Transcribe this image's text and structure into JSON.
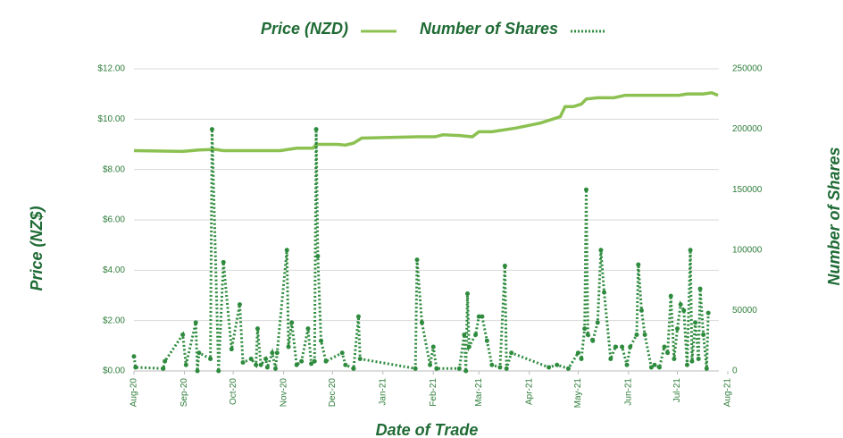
{
  "chart_data": {
    "type": "line",
    "xlabel": "Date of Trade",
    "ylabel": "Price (NZ$)",
    "y2label": "Number of Shares",
    "xlim": [
      0,
      365
    ],
    "xticks": [
      {
        "value": 0,
        "label": "Aug-20"
      },
      {
        "value": 31,
        "label": "Sep-20"
      },
      {
        "value": 61,
        "label": "Oct-20"
      },
      {
        "value": 92,
        "label": "Nov-20"
      },
      {
        "value": 122,
        "label": "Dec-20"
      },
      {
        "value": 153,
        "label": "Jan-21"
      },
      {
        "value": 184,
        "label": "Feb-21"
      },
      {
        "value": 212,
        "label": "Mar-21"
      },
      {
        "value": 243,
        "label": "Apr-21"
      },
      {
        "value": 273,
        "label": "May-21"
      },
      {
        "value": 304,
        "label": "Jun-21"
      },
      {
        "value": 334,
        "label": "Jul-21"
      },
      {
        "value": 365,
        "label": "Aug-21"
      }
    ],
    "ylim": [
      0,
      12
    ],
    "yticks": [
      {
        "value": 0,
        "label": "$0.00"
      },
      {
        "value": 2,
        "label": "$2.00"
      },
      {
        "value": 4,
        "label": "$4.00"
      },
      {
        "value": 6,
        "label": "$6.00"
      },
      {
        "value": 8,
        "label": "$8.00"
      },
      {
        "value": 10,
        "label": "$10.00"
      },
      {
        "value": 12,
        "label": "$12.00"
      }
    ],
    "y2lim": [
      0,
      250000
    ],
    "y2ticks": [
      0,
      50000,
      100000,
      150000,
      200000,
      250000
    ],
    "grid": true,
    "series": [
      {
        "name": "Price (NZD)",
        "color": "#8cc152",
        "line_style": "solid",
        "x": [
          0,
          30,
          40,
          50,
          55,
          80,
          90,
          95,
          100,
          110,
          112,
          125,
          130,
          135,
          140,
          160,
          175,
          185,
          190,
          200,
          208,
          212,
          220,
          235,
          250,
          262,
          265,
          270,
          275,
          278,
          285,
          295,
          302,
          320,
          335,
          340,
          350,
          355,
          359
        ],
        "values": [
          8.75,
          8.72,
          8.78,
          8.8,
          8.75,
          8.75,
          8.75,
          8.8,
          8.85,
          8.85,
          9.0,
          9.0,
          8.97,
          9.05,
          9.25,
          9.28,
          9.3,
          9.3,
          9.38,
          9.35,
          9.3,
          9.5,
          9.5,
          9.65,
          9.85,
          10.1,
          10.5,
          10.5,
          10.6,
          10.8,
          10.85,
          10.85,
          10.95,
          10.95,
          10.95,
          11.0,
          11.0,
          11.05,
          10.95
        ]
      },
      {
        "name": "Number of Shares",
        "color": "#2e8b3e",
        "line_style": "dotted",
        "axis": "y2",
        "x": [
          0,
          1,
          18,
          19,
          30,
          32,
          38,
          39,
          40,
          47,
          48,
          52,
          55,
          60,
          65,
          67,
          72,
          75,
          76,
          78,
          81,
          82,
          85,
          87,
          88,
          94,
          95,
          97,
          100,
          103,
          107,
          109,
          111,
          112,
          113,
          115,
          118,
          128,
          130,
          135,
          138,
          139,
          173,
          174,
          177,
          182,
          184,
          186,
          200,
          203,
          204,
          205,
          206,
          210,
          212,
          214,
          217,
          220,
          225,
          228,
          229,
          232,
          255,
          260,
          267,
          273,
          275,
          277,
          278,
          279,
          282,
          285,
          287,
          289,
          293,
          296,
          300,
          303,
          305,
          309,
          310,
          312,
          314,
          318,
          320,
          323,
          326,
          328,
          330,
          332,
          334,
          336,
          338,
          340,
          342,
          343,
          345,
          347,
          348,
          350,
          352,
          353
        ],
        "values": [
          12000,
          3000,
          2000,
          8000,
          30000,
          5000,
          40000,
          0,
          15000,
          10000,
          200000,
          0,
          90000,
          18000,
          55000,
          7000,
          10000,
          5000,
          35000,
          5000,
          10000,
          3000,
          15000,
          2000,
          15000,
          100000,
          20000,
          40000,
          5000,
          8000,
          35000,
          6000,
          8000,
          200000,
          95000,
          25000,
          8000,
          15000,
          5000,
          2000,
          45000,
          10000,
          2000,
          92000,
          40000,
          5000,
          20000,
          2000,
          2000,
          30000,
          0,
          64000,
          20000,
          30000,
          45000,
          45000,
          25000,
          5000,
          3000,
          87000,
          2000,
          15000,
          3000,
          5000,
          2000,
          15000,
          10000,
          35000,
          150000,
          30000,
          25000,
          40000,
          100000,
          65000,
          10000,
          20000,
          20000,
          5000,
          20000,
          30000,
          88000,
          50000,
          30000,
          3000,
          5000,
          3000,
          20000,
          15000,
          62000,
          10000,
          35000,
          55000,
          50000,
          5000,
          100000,
          8000,
          40000,
          10000,
          68000,
          30000,
          2000,
          48000
        ]
      }
    ]
  }
}
